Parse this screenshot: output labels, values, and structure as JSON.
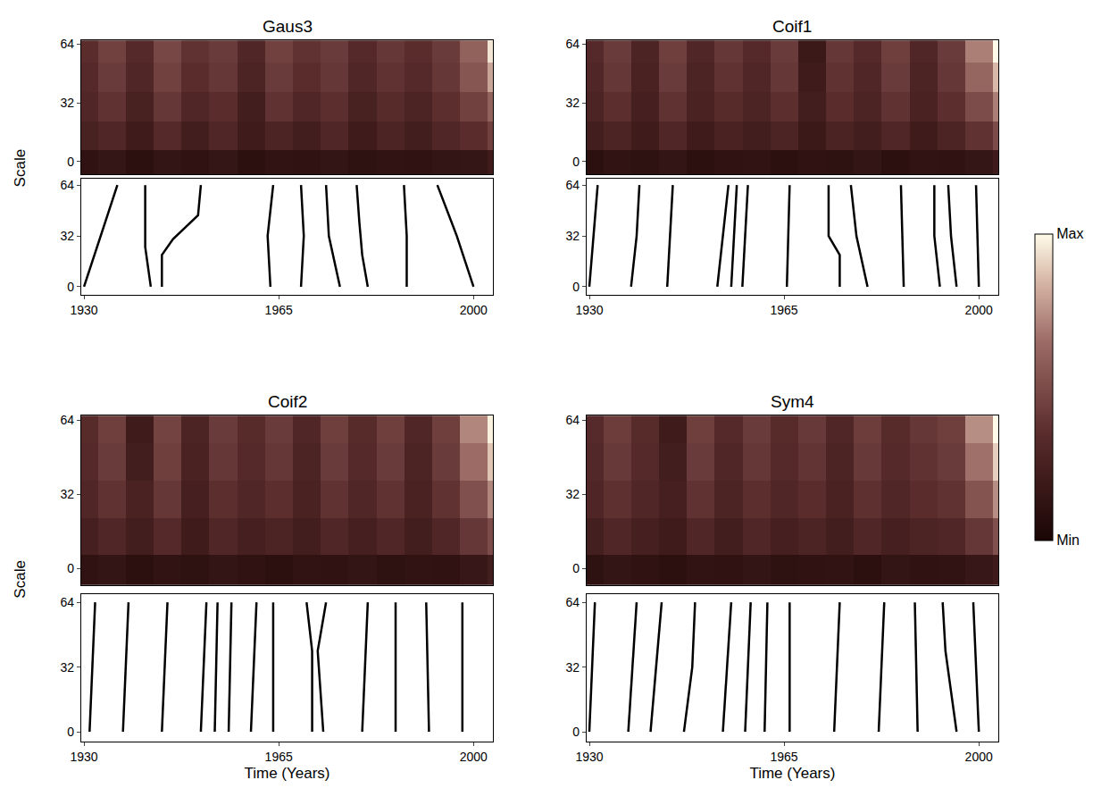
{
  "colorbar": {
    "range": [
      0,
      1
    ],
    "ticks": [
      {
        "value": 0,
        "label": "Min"
      },
      {
        "value": 1,
        "label": "Max"
      }
    ]
  },
  "chart_data": [
    {
      "type": "heatmap",
      "title": "Gaus3",
      "ylabel": "Scale",
      "xlim": [
        1929.5,
        2003.5
      ],
      "xticks": [
        1930,
        1965,
        2000
      ],
      "yticks": [
        0,
        32,
        64
      ],
      "heatmap": {
        "ylim": [
          -7,
          66
        ],
        "x": [
          1930,
          1935,
          1940,
          1945,
          1950,
          1955,
          1960,
          1965,
          1970,
          1975,
          1980,
          1985,
          1990,
          1995,
          2000,
          2005
        ],
        "y": [
          -2,
          14,
          30,
          46,
          62
        ],
        "z": [
          [
            0.12,
            0.15,
            0.1,
            0.14,
            0.12,
            0.15,
            0.1,
            0.13,
            0.12,
            0.14,
            0.11,
            0.13,
            0.12,
            0.14,
            0.15,
            0.2
          ],
          [
            0.25,
            0.3,
            0.2,
            0.32,
            0.22,
            0.3,
            0.2,
            0.28,
            0.22,
            0.3,
            0.2,
            0.28,
            0.22,
            0.3,
            0.35,
            0.45
          ],
          [
            0.3,
            0.38,
            0.25,
            0.4,
            0.3,
            0.35,
            0.22,
            0.38,
            0.3,
            0.36,
            0.25,
            0.34,
            0.28,
            0.36,
            0.45,
            0.6
          ],
          [
            0.32,
            0.42,
            0.3,
            0.45,
            0.35,
            0.4,
            0.28,
            0.42,
            0.35,
            0.4,
            0.3,
            0.38,
            0.32,
            0.4,
            0.55,
            0.8
          ],
          [
            0.35,
            0.45,
            0.32,
            0.48,
            0.38,
            0.42,
            0.3,
            0.45,
            0.38,
            0.42,
            0.32,
            0.4,
            0.35,
            0.42,
            0.6,
            0.95
          ]
        ]
      },
      "maxima_lines": {
        "ylim": [
          -5,
          68
        ],
        "series": [
          {
            "x": [
              1930,
              1933,
              1936
            ],
            "values": [
              0,
              32,
              64
            ]
          },
          {
            "x": [
              1942,
              1941,
              1941
            ],
            "values": [
              0,
              25,
              64
            ]
          },
          {
            "x": [
              1944,
              1944,
              1946,
              1950.5,
              1951
            ],
            "values": [
              0,
              20,
              30,
              45,
              64
            ]
          },
          {
            "x": [
              1963.5,
              1963,
              1964
            ],
            "values": [
              0,
              32,
              64
            ]
          },
          {
            "x": [
              1969,
              1969.5,
              1969
            ],
            "values": [
              0,
              32,
              64
            ]
          },
          {
            "x": [
              1976,
              1974,
              1973.5
            ],
            "values": [
              0,
              32,
              64
            ]
          },
          {
            "x": [
              1981,
              1980,
              1979.5,
              1979
            ],
            "values": [
              0,
              20,
              40,
              64
            ]
          },
          {
            "x": [
              1988,
              1988,
              1987.5
            ],
            "values": [
              0,
              32,
              64
            ]
          },
          {
            "x": [
              2000,
              1997,
              1993.5
            ],
            "values": [
              0,
              32,
              64
            ]
          }
        ]
      }
    },
    {
      "type": "heatmap",
      "title": "Coif1",
      "xlim": [
        1929.5,
        2003.5
      ],
      "xticks": [
        1930,
        1965,
        2000
      ],
      "yticks": [
        0,
        32,
        64
      ],
      "heatmap": {
        "ylim": [
          -7,
          66
        ],
        "x": [
          1930,
          1935,
          1940,
          1945,
          1950,
          1955,
          1960,
          1965,
          1970,
          1975,
          1980,
          1985,
          1990,
          1995,
          2000,
          2005
        ],
        "y": [
          -2,
          14,
          30,
          46,
          62
        ],
        "z": [
          [
            0.1,
            0.13,
            0.11,
            0.14,
            0.1,
            0.12,
            0.13,
            0.1,
            0.12,
            0.11,
            0.14,
            0.1,
            0.13,
            0.12,
            0.15,
            0.2
          ],
          [
            0.22,
            0.28,
            0.2,
            0.3,
            0.2,
            0.26,
            0.22,
            0.28,
            0.18,
            0.27,
            0.22,
            0.3,
            0.2,
            0.28,
            0.38,
            0.5
          ],
          [
            0.28,
            0.36,
            0.24,
            0.38,
            0.26,
            0.34,
            0.28,
            0.36,
            0.22,
            0.35,
            0.28,
            0.38,
            0.26,
            0.36,
            0.5,
            0.7
          ],
          [
            0.3,
            0.4,
            0.26,
            0.42,
            0.28,
            0.38,
            0.3,
            0.4,
            0.2,
            0.38,
            0.3,
            0.42,
            0.28,
            0.4,
            0.62,
            0.85
          ],
          [
            0.32,
            0.42,
            0.28,
            0.44,
            0.3,
            0.4,
            0.32,
            0.42,
            0.18,
            0.4,
            0.32,
            0.44,
            0.3,
            0.42,
            0.7,
            1.0
          ]
        ]
      },
      "maxima_lines": {
        "ylim": [
          -5,
          68
        ],
        "series": [
          {
            "x": [
              1930,
              1931.5
            ],
            "values": [
              0,
              64
            ]
          },
          {
            "x": [
              1937.5,
              1938.5,
              1939
            ],
            "values": [
              0,
              32,
              64
            ]
          },
          {
            "x": [
              1944,
              1945
            ],
            "values": [
              0,
              64
            ]
          },
          {
            "x": [
              1953,
              1954,
              1955
            ],
            "values": [
              0,
              32,
              64
            ]
          },
          {
            "x": [
              1955.5,
              1956.5
            ],
            "values": [
              0,
              64
            ]
          },
          {
            "x": [
              1957.5,
              1958.5
            ],
            "values": [
              0,
              64
            ]
          },
          {
            "x": [
              1965.5,
              1966
            ],
            "values": [
              0,
              64
            ]
          },
          {
            "x": [
              1975,
              1975,
              1973,
              1973
            ],
            "values": [
              0,
              20,
              32,
              64
            ]
          },
          {
            "x": [
              1980,
              1978,
              1977
            ],
            "values": [
              0,
              32,
              64
            ]
          },
          {
            "x": [
              1986.5,
              1986
            ],
            "values": [
              0,
              64
            ]
          },
          {
            "x": [
              1993,
              1992,
              1992
            ],
            "values": [
              0,
              32,
              64
            ]
          },
          {
            "x": [
              1996,
              1995,
              1994.5
            ],
            "values": [
              0,
              32,
              64
            ]
          },
          {
            "x": [
              2000,
              1999.5
            ],
            "values": [
              0,
              64
            ]
          }
        ]
      }
    },
    {
      "type": "heatmap",
      "title": "Coif2",
      "ylabel": "Scale",
      "xlabel": "Time (Years)",
      "xlim": [
        1929.5,
        2003.5
      ],
      "xticks": [
        1930,
        1965,
        2000
      ],
      "yticks": [
        0,
        32,
        64
      ],
      "heatmap": {
        "ylim": [
          -7,
          66
        ],
        "x": [
          1930,
          1935,
          1940,
          1945,
          1950,
          1955,
          1960,
          1965,
          1970,
          1975,
          1980,
          1985,
          1990,
          1995,
          2000,
          2005
        ],
        "y": [
          -2,
          14,
          30,
          46,
          62
        ],
        "z": [
          [
            0.12,
            0.14,
            0.1,
            0.13,
            0.11,
            0.14,
            0.12,
            0.1,
            0.13,
            0.12,
            0.14,
            0.11,
            0.13,
            0.12,
            0.16,
            0.22
          ],
          [
            0.24,
            0.3,
            0.22,
            0.32,
            0.2,
            0.3,
            0.24,
            0.28,
            0.22,
            0.3,
            0.24,
            0.3,
            0.22,
            0.3,
            0.4,
            0.5
          ],
          [
            0.3,
            0.38,
            0.26,
            0.4,
            0.24,
            0.36,
            0.3,
            0.36,
            0.26,
            0.38,
            0.3,
            0.38,
            0.26,
            0.38,
            0.52,
            0.72
          ],
          [
            0.32,
            0.42,
            0.22,
            0.44,
            0.26,
            0.4,
            0.32,
            0.4,
            0.28,
            0.42,
            0.32,
            0.42,
            0.28,
            0.42,
            0.65,
            0.88
          ],
          [
            0.34,
            0.44,
            0.2,
            0.46,
            0.28,
            0.42,
            0.34,
            0.42,
            0.3,
            0.44,
            0.34,
            0.44,
            0.3,
            0.44,
            0.72,
            0.98
          ]
        ]
      },
      "maxima_lines": {
        "ylim": [
          -5,
          68
        ],
        "series": [
          {
            "x": [
              1931,
              1932
            ],
            "values": [
              0,
              64
            ]
          },
          {
            "x": [
              1937,
              1938
            ],
            "values": [
              0,
              64
            ]
          },
          {
            "x": [
              1944,
              1945
            ],
            "values": [
              0,
              64
            ]
          },
          {
            "x": [
              1951,
              1952
            ],
            "values": [
              0,
              64
            ]
          },
          {
            "x": [
              1953.5,
              1954
            ],
            "values": [
              0,
              64
            ]
          },
          {
            "x": [
              1956,
              1956.5
            ],
            "values": [
              0,
              64
            ]
          },
          {
            "x": [
              1960,
              1961
            ],
            "values": [
              0,
              64
            ]
          },
          {
            "x": [
              1964,
              1964
            ],
            "values": [
              0,
              64
            ]
          },
          {
            "x": [
              1971,
              1971,
              1970
            ],
            "values": [
              0,
              40,
              64
            ]
          },
          {
            "x": [
              1973,
              1972,
              1973.5
            ],
            "values": [
              0,
              40,
              64
            ]
          },
          {
            "x": [
              1980,
              1981
            ],
            "values": [
              0,
              64
            ]
          },
          {
            "x": [
              1986,
              1986
            ],
            "values": [
              0,
              64
            ]
          },
          {
            "x": [
              1992,
              1991.5
            ],
            "values": [
              0,
              64
            ]
          },
          {
            "x": [
              1998,
              1998
            ],
            "values": [
              0,
              64
            ]
          }
        ]
      }
    },
    {
      "type": "heatmap",
      "title": "Sym4",
      "xlabel": "Time (Years)",
      "xlim": [
        1929.5,
        2003.5
      ],
      "xticks": [
        1930,
        1965,
        2000
      ],
      "yticks": [
        0,
        32,
        64
      ],
      "heatmap": {
        "ylim": [
          -7,
          66
        ],
        "x": [
          1930,
          1935,
          1940,
          1945,
          1950,
          1955,
          1960,
          1965,
          1970,
          1975,
          1980,
          1985,
          1990,
          1995,
          2000,
          2005
        ],
        "y": [
          -2,
          14,
          30,
          46,
          62
        ],
        "z": [
          [
            0.11,
            0.14,
            0.12,
            0.1,
            0.13,
            0.12,
            0.14,
            0.11,
            0.12,
            0.13,
            0.1,
            0.14,
            0.12,
            0.13,
            0.16,
            0.2
          ],
          [
            0.23,
            0.3,
            0.24,
            0.2,
            0.3,
            0.22,
            0.3,
            0.24,
            0.28,
            0.22,
            0.3,
            0.24,
            0.28,
            0.3,
            0.4,
            0.52
          ],
          [
            0.29,
            0.37,
            0.3,
            0.24,
            0.38,
            0.28,
            0.36,
            0.3,
            0.35,
            0.26,
            0.37,
            0.3,
            0.35,
            0.38,
            0.54,
            0.74
          ],
          [
            0.31,
            0.41,
            0.32,
            0.22,
            0.42,
            0.3,
            0.4,
            0.32,
            0.39,
            0.28,
            0.41,
            0.32,
            0.38,
            0.42,
            0.66,
            0.9
          ],
          [
            0.33,
            0.43,
            0.34,
            0.2,
            0.44,
            0.32,
            0.42,
            0.34,
            0.41,
            0.3,
            0.43,
            0.34,
            0.4,
            0.44,
            0.74,
            1.0
          ]
        ]
      },
      "maxima_lines": {
        "ylim": [
          -5,
          68
        ],
        "series": [
          {
            "x": [
              1930,
              1931
            ],
            "values": [
              0,
              64
            ]
          },
          {
            "x": [
              1937,
              1938.5
            ],
            "values": [
              0,
              64
            ]
          },
          {
            "x": [
              1941,
              1943
            ],
            "values": [
              0,
              64
            ]
          },
          {
            "x": [
              1947,
              1948.5,
              1949
            ],
            "values": [
              0,
              32,
              64
            ]
          },
          {
            "x": [
              1954,
              1955.5
            ],
            "values": [
              0,
              64
            ]
          },
          {
            "x": [
              1958,
              1959
            ],
            "values": [
              0,
              64
            ]
          },
          {
            "x": [
              1961.5,
              1962
            ],
            "values": [
              0,
              64
            ]
          },
          {
            "x": [
              1966,
              1966
            ],
            "values": [
              0,
              64
            ]
          },
          {
            "x": [
              1974,
              1975
            ],
            "values": [
              0,
              64
            ]
          },
          {
            "x": [
              1982,
              1983
            ],
            "values": [
              0,
              64
            ]
          },
          {
            "x": [
              1989,
              1988.5
            ],
            "values": [
              0,
              64
            ]
          },
          {
            "x": [
              1996,
              1994,
              1993.5
            ],
            "values": [
              0,
              40,
              64
            ]
          },
          {
            "x": [
              2000,
              1999
            ],
            "values": [
              0,
              64
            ]
          }
        ]
      }
    }
  ]
}
